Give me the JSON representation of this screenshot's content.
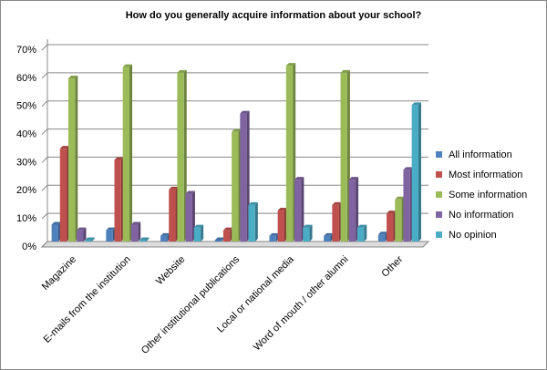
{
  "chart_data": {
    "type": "bar",
    "title": "How do you generally acquire information about your school?",
    "categories": [
      "Magazine",
      "E-mails from the institution",
      "Website",
      "Other institutional publications",
      "Local or national media",
      "Word of mouth / other alumni",
      "Other"
    ],
    "series": [
      {
        "name": "All information",
        "color": "#4f81bd",
        "values": [
          6,
          4,
          2,
          0.5,
          2,
          2,
          2.5
        ]
      },
      {
        "name": "Most information",
        "color": "#c0504d",
        "values": [
          33,
          29,
          18.5,
          4,
          11,
          13,
          10
        ]
      },
      {
        "name": "Some information",
        "color": "#9bbb59",
        "values": [
          58,
          62,
          60,
          39,
          62.5,
          60,
          15
        ]
      },
      {
        "name": "No information",
        "color": "#8064a2",
        "values": [
          4,
          6,
          17,
          45.5,
          22,
          22,
          25.5
        ]
      },
      {
        "name": "No opinion",
        "color": "#4bacc6",
        "values": [
          0.5,
          0.5,
          5,
          13,
          5,
          5,
          48.5
        ]
      }
    ],
    "ylim": [
      0,
      70
    ],
    "yticks": [
      {
        "value": 0,
        "label": "0%"
      },
      {
        "value": 10,
        "label": "10%"
      },
      {
        "value": 20,
        "label": "20%"
      },
      {
        "value": 30,
        "label": "30%"
      },
      {
        "value": 40,
        "label": "40%"
      },
      {
        "value": 50,
        "label": "50%"
      },
      {
        "value": 60,
        "label": "60%"
      },
      {
        "value": 70,
        "label": "70%"
      }
    ],
    "grid": true,
    "legend": "right"
  }
}
